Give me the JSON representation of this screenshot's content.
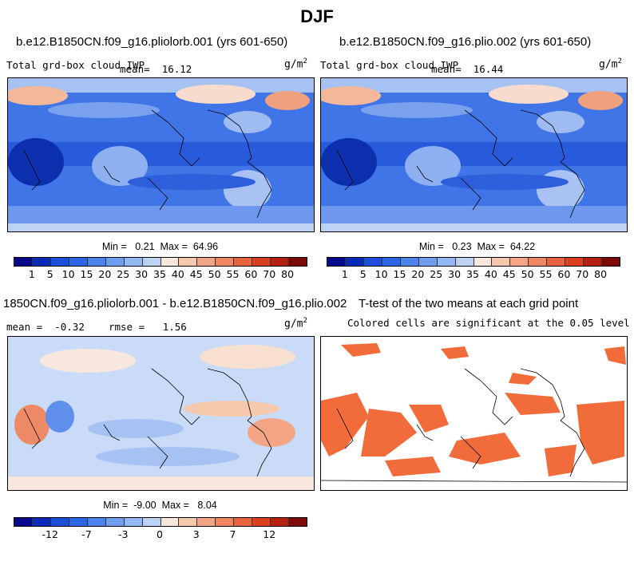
{
  "title": "DJF",
  "panels": {
    "top_left": {
      "title": "b.e12.B1850CN.f09_g16.pliolorb.001 (yrs 601-650)",
      "variable": "Total grd-box cloud IWP",
      "mean_label": "mean=",
      "mean": "16.12",
      "unit": "g/m",
      "unit_sup": "2",
      "min_label": "Min =",
      "min": "0.21",
      "max_label": "Max =",
      "max": "64.96"
    },
    "top_right": {
      "title": "b.e12.B1850CN.f09_g16.plio.002 (yrs 601-650)",
      "variable": "Total grd-box cloud IWP",
      "mean_label": "mean=",
      "mean": "16.44",
      "unit": "g/m",
      "unit_sup": "2",
      "min_label": "Min =",
      "min": "0.23",
      "max_label": "Max =",
      "max": "64.22"
    },
    "bottom_left": {
      "title": "1850CN.f09_g16.pliolorb.001 - b.e12.B1850CN.f09_g16.plio.002",
      "mean_label": "mean =",
      "mean": "-0.32",
      "rmse_label": "rmse =",
      "rmse": "1.56",
      "unit": "g/m",
      "unit_sup": "2",
      "min_label": "Min =",
      "min": "-9.00",
      "max_label": "Max =",
      "max": "8.04"
    },
    "bottom_right": {
      "title": "T-test of the two means at each grid point",
      "subtitle": "Colored cells are significant at the 0.05 level"
    }
  },
  "colorbars": {
    "abs": {
      "ticks": [
        "1",
        "5",
        "10",
        "15",
        "20",
        "25",
        "30",
        "35",
        "40",
        "45",
        "50",
        "55",
        "60",
        "70",
        "80"
      ],
      "colors": [
        "#08088c",
        "#0a2ab8",
        "#1c4ed9",
        "#2d66e6",
        "#4b82ec",
        "#6f9df0",
        "#93b8f3",
        "#bcd3f6",
        "#f7e7dc",
        "#f6c9ad",
        "#f3a585",
        "#ef8660",
        "#e9643e",
        "#d9401f",
        "#b71f0f",
        "#7d0a05"
      ]
    },
    "diff": {
      "ticks": [
        "-12",
        "-7",
        "-3",
        "0",
        "3",
        "7",
        "12"
      ],
      "colors": [
        "#08088c",
        "#0a2ab8",
        "#1c4ed9",
        "#2d66e6",
        "#4b82ec",
        "#6f9df0",
        "#93b8f3",
        "#bcd3f6",
        "#f7e7dc",
        "#f6c9ad",
        "#f3a585",
        "#ef8660",
        "#e9643e",
        "#d9401f",
        "#b71f0f",
        "#7d0a05"
      ]
    },
    "significance_color": "#f26b3a"
  }
}
